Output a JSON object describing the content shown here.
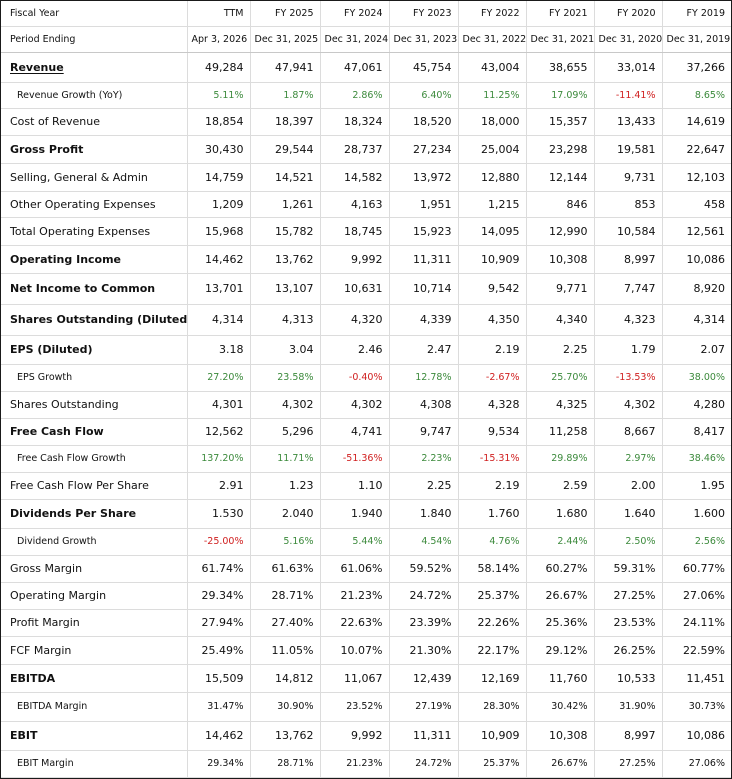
{
  "colors": {
    "positive": "#3c8a3c",
    "negative": "#d02020"
  },
  "header": {
    "fiscal_year_label": "Fiscal Year",
    "period_label": "Period Ending",
    "columns": [
      {
        "year": "TTM",
        "period": "Apr 3, 2026"
      },
      {
        "year": "FY 2025",
        "period": "Dec 31, 2025"
      },
      {
        "year": "FY 2024",
        "period": "Dec 31, 2024"
      },
      {
        "year": "FY 2023",
        "period": "Dec 31, 2023"
      },
      {
        "year": "FY 2022",
        "period": "Dec 31, 2022"
      },
      {
        "year": "FY 2021",
        "period": "Dec 31, 2021"
      },
      {
        "year": "FY 2020",
        "period": "Dec 31, 2020"
      },
      {
        "year": "FY 2019",
        "period": "Dec 31, 2019"
      }
    ]
  },
  "rows": [
    {
      "label": "Revenue",
      "style": "bold",
      "link": true,
      "h": 30,
      "values": [
        "49,284",
        "47,941",
        "47,061",
        "45,754",
        "43,004",
        "38,655",
        "33,014",
        "37,266"
      ]
    },
    {
      "label": "Revenue Growth (YoY)",
      "style": "sub",
      "h": 26,
      "colored": true,
      "values": [
        "5.11%",
        "1.87%",
        "2.86%",
        "6.40%",
        "11.25%",
        "17.09%",
        "-11.41%",
        "8.65%"
      ]
    },
    {
      "label": "Cost of Revenue",
      "style": "normal",
      "h": 27,
      "values": [
        "18,854",
        "18,397",
        "18,324",
        "18,520",
        "18,000",
        "15,357",
        "13,433",
        "14,619"
      ]
    },
    {
      "label": "Gross Profit",
      "style": "bold",
      "h": 28,
      "values": [
        "30,430",
        "29,544",
        "28,737",
        "27,234",
        "25,004",
        "23,298",
        "19,581",
        "22,647"
      ]
    },
    {
      "label": "Selling, General & Admin",
      "style": "normal",
      "h": 28,
      "values": [
        "14,759",
        "14,521",
        "14,582",
        "13,972",
        "12,880",
        "12,144",
        "9,731",
        "12,103"
      ]
    },
    {
      "label": "Other Operating Expenses",
      "style": "normal",
      "h": 26,
      "values": [
        "1,209",
        "1,261",
        "4,163",
        "1,951",
        "1,215",
        "846",
        "853",
        "458"
      ]
    },
    {
      "label": "Total Operating Expenses",
      "style": "normal",
      "h": 28,
      "values": [
        "15,968",
        "15,782",
        "18,745",
        "15,923",
        "14,095",
        "12,990",
        "10,584",
        "12,561"
      ]
    },
    {
      "label": "Operating Income",
      "style": "bold",
      "h": 28,
      "values": [
        "14,462",
        "13,762",
        "9,992",
        "11,311",
        "10,909",
        "10,308",
        "8,997",
        "10,086"
      ]
    },
    {
      "label": "Net Income to Common",
      "style": "bold",
      "h": 31,
      "values": [
        "13,701",
        "13,107",
        "10,631",
        "10,714",
        "9,542",
        "9,771",
        "7,747",
        "8,920"
      ]
    },
    {
      "label": "Shares Outstanding (Diluted)",
      "style": "bold",
      "h": 31,
      "values": [
        "4,314",
        "4,313",
        "4,320",
        "4,339",
        "4,350",
        "4,340",
        "4,323",
        "4,314"
      ]
    },
    {
      "label": "EPS (Diluted)",
      "style": "bold",
      "h": 29,
      "values": [
        "3.18",
        "3.04",
        "2.46",
        "2.47",
        "2.19",
        "2.25",
        "1.79",
        "2.07"
      ]
    },
    {
      "label": "EPS Growth",
      "style": "sub",
      "h": 27,
      "colored": true,
      "values": [
        "27.20%",
        "23.58%",
        "-0.40%",
        "12.78%",
        "-2.67%",
        "25.70%",
        "-13.53%",
        "38.00%"
      ]
    },
    {
      "label": "Shares Outstanding",
      "style": "normal",
      "h": 27,
      "values": [
        "4,301",
        "4,302",
        "4,302",
        "4,308",
        "4,328",
        "4,325",
        "4,302",
        "4,280"
      ]
    },
    {
      "label": "Free Cash Flow",
      "style": "bold",
      "h": 27,
      "values": [
        "12,562",
        "5,296",
        "4,741",
        "9,747",
        "9,534",
        "11,258",
        "8,667",
        "8,417"
      ]
    },
    {
      "label": "Free Cash Flow Growth",
      "style": "sub",
      "h": 27,
      "colored": true,
      "values": [
        "137.20%",
        "11.71%",
        "-51.36%",
        "2.23%",
        "-15.31%",
        "29.89%",
        "2.97%",
        "38.46%"
      ]
    },
    {
      "label": "Free Cash Flow Per Share",
      "style": "normal",
      "h": 27,
      "values": [
        "2.91",
        "1.23",
        "1.10",
        "2.25",
        "2.19",
        "2.59",
        "2.00",
        "1.95"
      ]
    },
    {
      "label": "Dividends Per Share",
      "style": "bold",
      "h": 29,
      "values": [
        "1.530",
        "2.040",
        "1.940",
        "1.840",
        "1.760",
        "1.680",
        "1.640",
        "1.600"
      ]
    },
    {
      "label": "Dividend Growth",
      "style": "sub",
      "h": 27,
      "colored": true,
      "values": [
        "-25.00%",
        "5.16%",
        "5.44%",
        "4.54%",
        "4.76%",
        "2.44%",
        "2.50%",
        "2.56%"
      ]
    },
    {
      "label": "Gross Margin",
      "style": "normal",
      "h": 27,
      "values": [
        "61.74%",
        "61.63%",
        "61.06%",
        "59.52%",
        "58.14%",
        "60.27%",
        "59.31%",
        "60.77%"
      ]
    },
    {
      "label": "Operating Margin",
      "style": "normal",
      "h": 27,
      "values": [
        "29.34%",
        "28.71%",
        "21.23%",
        "24.72%",
        "25.37%",
        "26.67%",
        "27.25%",
        "27.06%"
      ]
    },
    {
      "label": "Profit Margin",
      "style": "normal",
      "h": 27,
      "values": [
        "27.94%",
        "27.40%",
        "22.63%",
        "23.39%",
        "22.26%",
        "25.36%",
        "23.53%",
        "24.11%"
      ]
    },
    {
      "label": "FCF Margin",
      "style": "normal",
      "h": 28,
      "values": [
        "25.49%",
        "11.05%",
        "10.07%",
        "21.30%",
        "22.17%",
        "29.12%",
        "26.25%",
        "22.59%"
      ]
    },
    {
      "label": "EBITDA",
      "style": "bold",
      "h": 28,
      "values": [
        "15,509",
        "14,812",
        "11,067",
        "12,439",
        "12,169",
        "11,760",
        "10,533",
        "11,451"
      ]
    },
    {
      "label": "EBITDA Margin",
      "style": "sub",
      "h": 29,
      "values": [
        "31.47%",
        "30.90%",
        "23.52%",
        "27.19%",
        "28.30%",
        "30.42%",
        "31.90%",
        "30.73%"
      ]
    },
    {
      "label": "EBIT",
      "style": "bold",
      "h": 29,
      "values": [
        "14,462",
        "13,762",
        "9,992",
        "11,311",
        "10,909",
        "10,308",
        "8,997",
        "10,086"
      ]
    },
    {
      "label": "EBIT Margin",
      "style": "sub",
      "h": 27,
      "values": [
        "29.34%",
        "28.71%",
        "21.23%",
        "24.72%",
        "25.37%",
        "26.67%",
        "27.25%",
        "27.06%"
      ]
    }
  ]
}
